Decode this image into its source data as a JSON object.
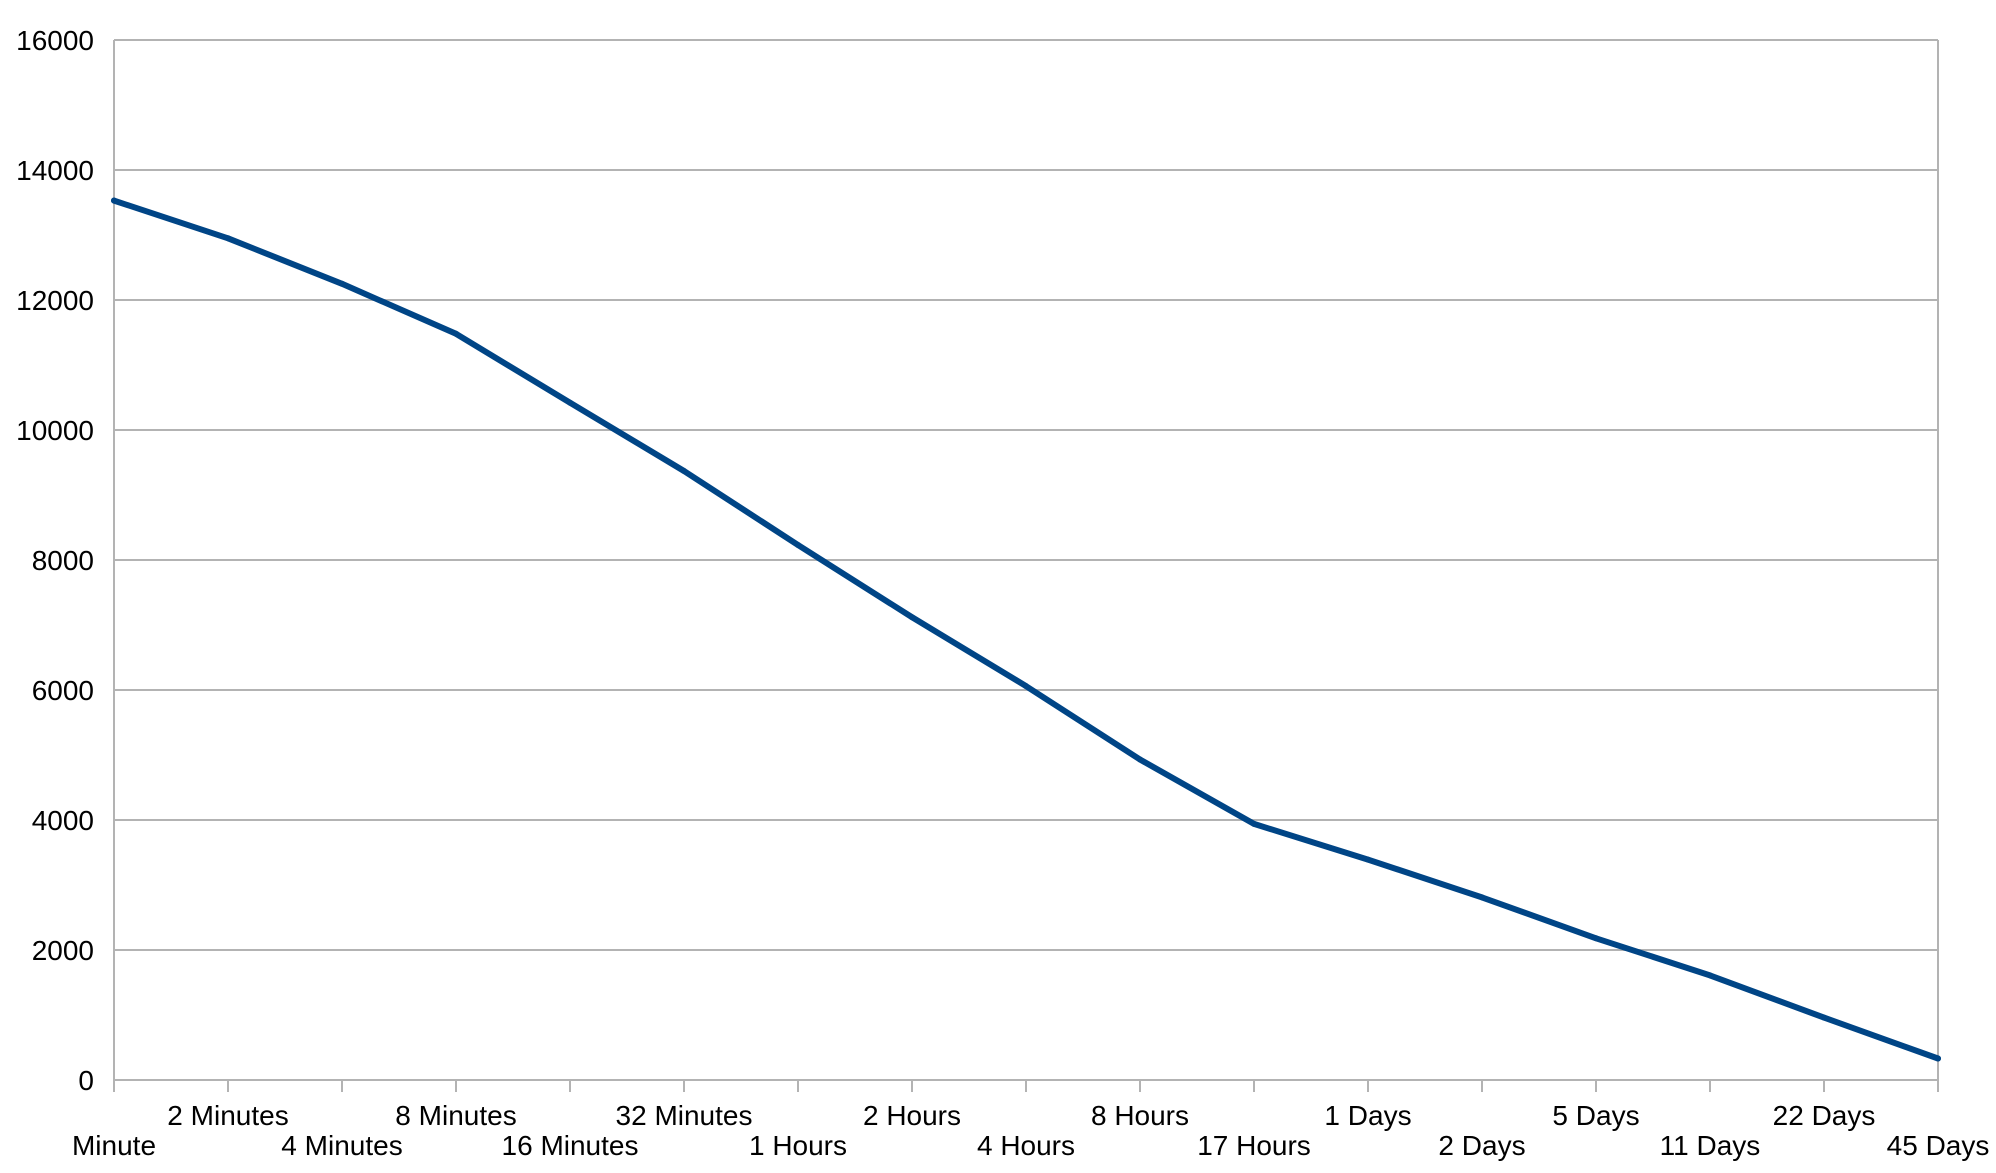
{
  "chart_data": {
    "type": "line",
    "title": "",
    "xlabel": "",
    "ylabel": "",
    "categories": [
      "Minute",
      "2 Minutes",
      "4 Minutes",
      "8 Minutes",
      "16 Minutes",
      "32 Minutes",
      "1 Hours",
      "2 Hours",
      "4 Hours",
      "8 Hours",
      "17 Hours",
      "1 Days",
      "2 Days",
      "5 Days",
      "11 Days",
      "22 Days",
      "45 Days"
    ],
    "series": [
      {
        "values": [
          13530,
          12950,
          12250,
          11480,
          10420,
          9370,
          8230,
          7120,
          6060,
          4930,
          3940,
          3390,
          2810,
          2180,
          1610,
          960,
          330
        ]
      }
    ],
    "ylim": [
      0,
      16000
    ],
    "yticks": [
      0,
      2000,
      4000,
      6000,
      8000,
      10000,
      12000,
      14000,
      16000
    ],
    "grid": true,
    "legend": "none",
    "line_color": "#004586",
    "grid_color": "#b3b3b3",
    "axis_color": "#b3b3b3"
  }
}
